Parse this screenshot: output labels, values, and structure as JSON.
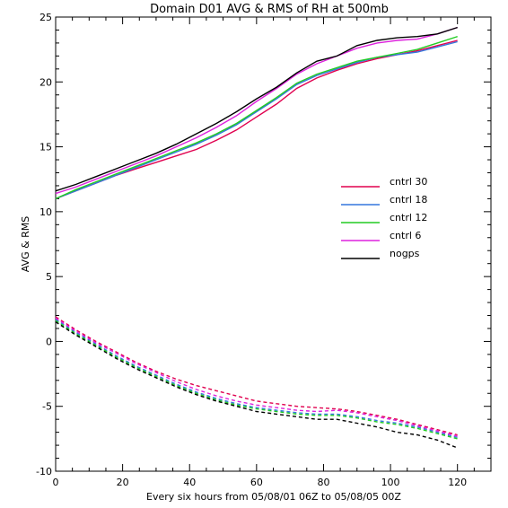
{
  "chart_data": {
    "type": "line",
    "title": "Domain D01 AVG & RMS of RH at 500mb",
    "xlabel": "Every six hours from 05/08/01 06Z to 05/08/05 00Z",
    "ylabel": "AVG & RMS",
    "xlim": [
      0,
      130
    ],
    "ylim": [
      -10,
      25
    ],
    "xticks": [
      "0",
      "20",
      "40",
      "60",
      "80",
      "100",
      "120"
    ],
    "yticks": [
      "-10",
      "-5",
      "0",
      "5",
      "10",
      "15",
      "20",
      "25"
    ],
    "grid": false,
    "legend_position": "right-middle",
    "x": [
      0,
      6,
      12,
      18,
      24,
      30,
      36,
      42,
      48,
      54,
      60,
      66,
      72,
      78,
      84,
      90,
      96,
      102,
      108,
      114,
      120
    ],
    "series": [
      {
        "name": "cntrl 30",
        "color": "#e0004f",
        "avg": [
          11.0,
          11.6,
          12.2,
          12.8,
          13.3,
          13.8,
          14.3,
          14.8,
          15.5,
          16.3,
          17.3,
          18.3,
          19.5,
          20.3,
          20.9,
          21.4,
          21.8,
          22.1,
          22.4,
          22.8,
          23.2
        ],
        "rms": [
          1.9,
          0.9,
          0.0,
          -0.8,
          -1.6,
          -2.3,
          -2.9,
          -3.4,
          -3.8,
          -4.2,
          -4.6,
          -4.8,
          -5.0,
          -5.1,
          -5.2,
          -5.4,
          -5.7,
          -6.0,
          -6.4,
          -6.8,
          -7.2
        ]
      },
      {
        "name": "cntrl 18",
        "color": "#3377dd",
        "avg": [
          11.0,
          11.6,
          12.2,
          12.8,
          13.4,
          14.0,
          14.6,
          15.2,
          15.9,
          16.7,
          17.7,
          18.7,
          19.8,
          20.5,
          21.0,
          21.5,
          21.9,
          22.1,
          22.3,
          22.7,
          23.1
        ],
        "rms": [
          1.7,
          0.7,
          -0.2,
          -1.1,
          -1.9,
          -2.6,
          -3.3,
          -3.9,
          -4.4,
          -4.8,
          -5.1,
          -5.3,
          -5.5,
          -5.6,
          -5.6,
          -5.8,
          -6.1,
          -6.3,
          -6.6,
          -7.0,
          -7.4
        ]
      },
      {
        "name": "cntrl 12",
        "color": "#22cc22",
        "avg": [
          11.0,
          11.7,
          12.3,
          12.9,
          13.5,
          14.1,
          14.7,
          15.3,
          16.0,
          16.8,
          17.8,
          18.8,
          19.9,
          20.6,
          21.1,
          21.6,
          21.9,
          22.2,
          22.5,
          23.0,
          23.5
        ],
        "rms": [
          1.6,
          0.6,
          -0.3,
          -1.2,
          -2.0,
          -2.7,
          -3.4,
          -4.0,
          -4.5,
          -4.9,
          -5.2,
          -5.4,
          -5.6,
          -5.7,
          -5.7,
          -5.9,
          -6.2,
          -6.4,
          -6.7,
          -7.1,
          -7.5
        ]
      },
      {
        "name": "cntrl 6",
        "color": "#dd22dd",
        "avg": [
          11.4,
          11.9,
          12.5,
          13.1,
          13.7,
          14.3,
          15.0,
          15.7,
          16.5,
          17.4,
          18.5,
          19.5,
          20.6,
          21.4,
          22.0,
          22.6,
          23.0,
          23.2,
          23.3,
          23.7,
          24.2
        ],
        "rms": [
          1.8,
          0.8,
          -0.1,
          -0.9,
          -1.7,
          -2.4,
          -3.1,
          -3.7,
          -4.2,
          -4.6,
          -4.9,
          -5.1,
          -5.3,
          -5.4,
          -5.3,
          -5.5,
          -5.8,
          -6.1,
          -6.5,
          -6.9,
          -7.3
        ]
      },
      {
        "name": "nogps",
        "color": "#000000",
        "avg": [
          11.6,
          12.1,
          12.7,
          13.3,
          13.9,
          14.5,
          15.2,
          16.0,
          16.8,
          17.7,
          18.7,
          19.6,
          20.7,
          21.6,
          22.0,
          22.8,
          23.2,
          23.4,
          23.5,
          23.7,
          24.2
        ],
        "rms": [
          1.5,
          0.5,
          -0.4,
          -1.3,
          -2.1,
          -2.8,
          -3.5,
          -4.1,
          -4.6,
          -5.0,
          -5.4,
          -5.6,
          -5.8,
          -6.0,
          -6.0,
          -6.3,
          -6.6,
          -7.0,
          -7.2,
          -7.6,
          -8.2
        ]
      }
    ]
  }
}
